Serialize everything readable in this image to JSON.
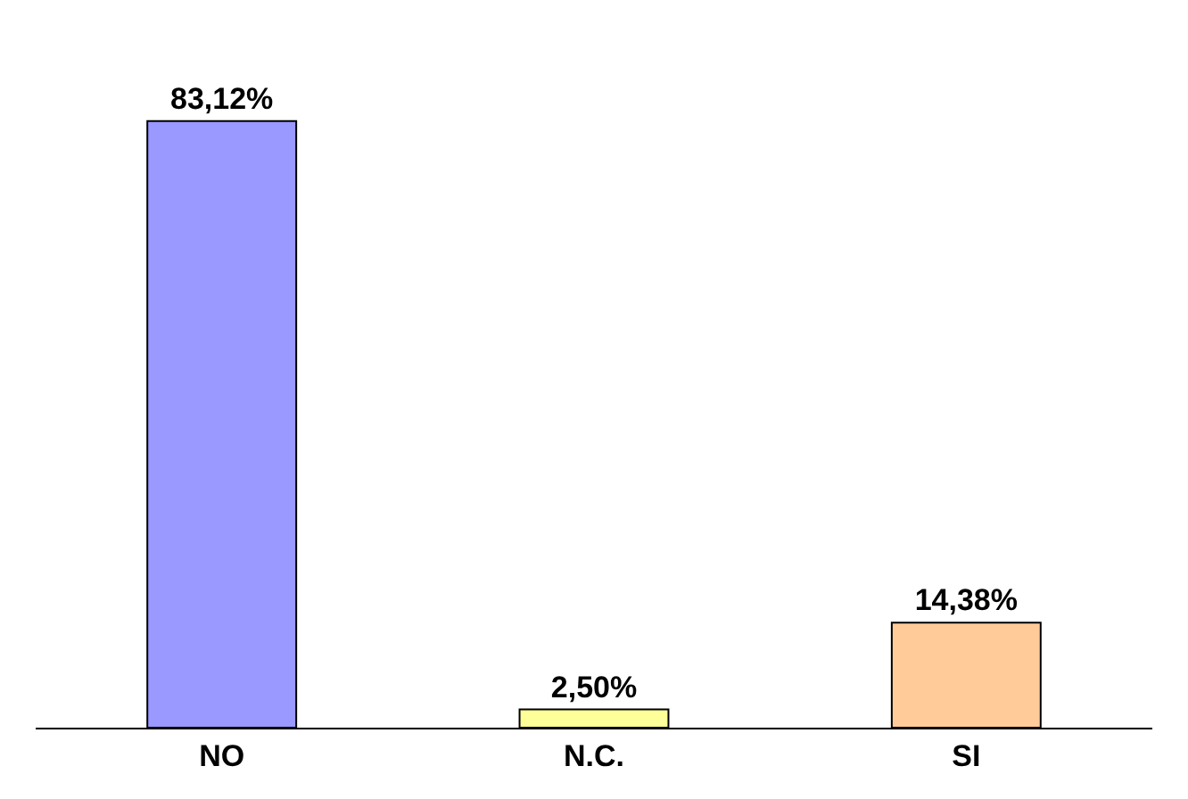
{
  "chart_data": {
    "type": "bar",
    "categories": [
      "NO",
      "N.C.",
      "SI"
    ],
    "values": [
      83.12,
      2.5,
      14.38
    ],
    "colors": [
      "#9999ff",
      "#ffff99",
      "#ffcc99"
    ],
    "value_labels": [
      "83,12%",
      "2,50%",
      "14,38%"
    ],
    "legend": false
  }
}
